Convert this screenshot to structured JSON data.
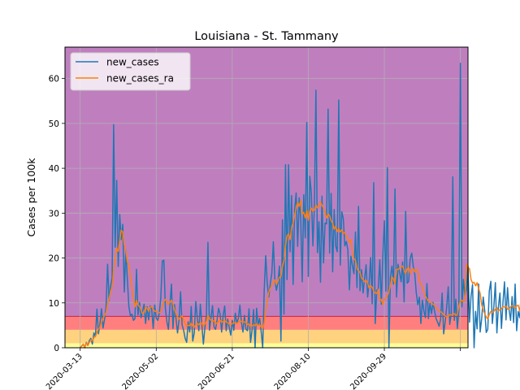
{
  "chart_data": {
    "type": "line",
    "title": "Louisiana - St. Tammany",
    "xlabel": "",
    "ylabel": "Cases per 100k",
    "x_ticks": [
      "2020-03-13",
      "2020-05-02",
      "2020-06-21",
      "2020-08-10",
      "2020-09-29",
      ""
    ],
    "y_ticks": [
      "0",
      "10",
      "20",
      "30",
      "40",
      "50",
      "60"
    ],
    "xlim": [
      "2020-03-03",
      "2020-11-23"
    ],
    "ylim": [
      0,
      67
    ],
    "grid": true,
    "legend_position": "top-left",
    "risk_bands": [
      {
        "from": 0,
        "to": 1,
        "color": "#ffff99"
      },
      {
        "from": 1,
        "to": 4,
        "color": "#ffd27f"
      },
      {
        "from": 4,
        "to": 7,
        "color": "#ff7f7f"
      },
      {
        "from": 7,
        "to": 67,
        "color": "#bf7fbf"
      }
    ],
    "series": [
      {
        "name": "new_cases",
        "color": "#1f77b4",
        "start_date": "2020-03-13",
        "values": [
          0,
          0.4,
          0.8,
          0,
          1.2,
          0.5,
          1.6,
          2.1,
          0.8,
          3.3,
          2.5,
          8.6,
          3.1,
          5.4,
          8.7,
          4.4,
          6.3,
          9.2,
          18.6,
          10.5,
          13.7,
          15.6,
          49.7,
          22.4,
          37.3,
          18.1,
          29.7,
          24.1,
          27.5,
          12.4,
          21.8,
          15.3,
          9.2,
          7.1,
          7.5,
          6.1,
          6.5,
          17.5,
          7.3,
          10.1,
          6.7,
          8.1,
          9.7,
          5.4,
          9.1,
          6.2,
          9.3,
          8.6,
          4.3,
          9.5,
          6.6,
          6.1,
          7.7,
          11.2,
          19.3,
          19.5,
          8.8,
          5.8,
          4.1,
          9.4,
          14.2,
          4.3,
          9.6,
          6.5,
          3.3,
          6.2,
          12.5,
          5.1,
          3.9,
          2.1,
          1.2,
          5.8,
          3.5,
          9.2,
          1.5,
          3.3,
          10.3,
          6.6,
          3.8,
          9.7,
          5.1,
          0.8,
          4.5,
          7.4,
          23.5,
          3.9,
          6.6,
          9.4,
          4.6,
          4.1,
          6.2,
          8.8,
          7.5,
          3.5,
          7.2,
          9.3,
          3.8,
          6.4,
          4.5,
          2.8,
          6.1,
          3.9,
          7.7,
          5.5,
          6.5,
          9.5,
          5.7,
          3.5,
          7.2,
          4.1,
          3.8,
          8.7,
          1.2,
          3.9,
          8.5,
          0,
          8.8,
          5.1,
          6.6,
          3.6,
          0,
          12.8,
          20.5,
          14.3,
          11.3,
          14.3,
          16.6,
          23.6,
          15.2,
          12.8,
          14.5,
          18.2,
          1.5,
          28.5,
          7.5,
          40.8,
          15.2,
          40.8,
          21.4,
          33.9,
          14.1,
          30.8,
          34.5,
          22.6,
          33.4,
          28.8,
          14.7,
          34.1,
          24.5,
          50.2,
          15.9,
          38.2,
          34.4,
          22.7,
          31.5,
          57.4,
          21.2,
          28.1,
          14.6,
          33.8,
          18.9,
          27.8,
          27.6,
          53.2,
          21.1,
          34.4,
          16.9,
          30.8,
          22.7,
          21.4,
          55.2,
          18.4,
          30.3,
          28.8,
          22.7,
          23.7,
          21.8,
          12.9,
          20.4,
          18.3,
          16.5,
          25.8,
          13.4,
          31.5,
          12.7,
          17.4,
          12.2,
          15.4,
          18.5,
          11.3,
          14.6,
          20.1,
          9.8,
          36.8,
          5.4,
          12.8,
          13.1,
          19.6,
          9.7,
          20.3,
          28.3,
          12.6,
          40.1,
          0,
          15.8,
          18.2,
          14.2,
          35.4,
          11.3,
          18.6,
          16.8,
          14.7,
          19.1,
          10.2,
          30.4,
          14.4,
          14.8,
          19.9,
          21.1,
          18.2,
          16.5,
          12.2,
          9.6,
          11.3,
          5.4,
          10.6,
          8.2,
          6.7,
          14.3,
          6.5,
          9.9,
          7.6,
          10.1,
          8.2,
          6.5,
          5.7,
          4.8,
          6.4,
          12.2,
          3.1,
          5.8,
          9.1,
          13.6,
          5.2,
          7.6,
          38.1,
          6.1,
          10.8,
          4.3,
          8.4,
          63.4,
          9.1,
          15.2,
          11.5,
          12.9,
          18.2,
          5.7,
          11.5,
          14.1,
          0,
          8.1,
          4.2,
          14.2,
          3.5,
          6.5,
          11.3,
          8.3,
          3.4,
          4.1,
          12.6,
          14.8,
          5.4,
          9.2,
          14.5,
          3.3,
          9.1,
          12.2,
          4.3,
          10.1,
          14.7,
          6.2,
          13.4,
          8.5,
          6.1,
          11.4,
          5.6,
          14.2,
          3.8,
          8.1,
          6.7,
          12.3,
          9.5,
          2.1,
          7.8,
          19.6,
          5.3,
          12.4,
          16.8,
          0,
          17.6
        ]
      },
      {
        "name": "new_cases_ra",
        "color": "#ff7f0e",
        "start_date": "2020-03-13",
        "values": [
          0,
          0.4,
          0.8,
          0,
          1.1,
          0.5,
          1.2,
          1.8,
          1.5,
          2.3,
          2.5,
          3.4,
          4.2,
          4.6,
          5.7,
          6.6,
          7.2,
          7.9,
          9.8,
          10.8,
          12.6,
          13.6,
          17.4,
          19.8,
          22.2,
          21.5,
          23.9,
          26.2,
          25.8,
          22.8,
          21.6,
          19.1,
          18.5,
          15.7,
          13.4,
          11.2,
          9.1,
          10.6,
          9.5,
          9.2,
          8.4,
          7.6,
          7.8,
          9.1,
          8.8,
          8.1,
          9.0,
          9.2,
          8.6,
          8.1,
          8.2,
          7.9,
          7.8,
          8.0,
          9.1,
          10.3,
          10.8,
          10.2,
          9.6,
          10.2,
          10.6,
          9.8,
          8.5,
          7.6,
          6.9,
          6.4,
          6.8,
          7.1,
          6.2,
          5.4,
          4.8,
          5.0,
          4.9,
          5.5,
          4.8,
          4.6,
          5.2,
          5.4,
          5.1,
          5.6,
          5.5,
          4.8,
          5.3,
          5.9,
          7.2,
          6.4,
          6.2,
          5.9,
          6.0,
          5.6,
          5.4,
          5.9,
          6.1,
          5.7,
          5.8,
          6.1,
          5.7,
          5.6,
          5.3,
          5.1,
          5.4,
          5.5,
          5.6,
          5.4,
          5.7,
          5.9,
          5.9,
          5.7,
          5.8,
          5.6,
          5.2,
          5.3,
          4.8,
          4.9,
          5.1,
          4.9,
          5.3,
          5.0,
          5.1,
          4.6,
          4.3,
          5.5,
          8.2,
          10.6,
          12.4,
          13.2,
          13.8,
          14.9,
          15.1,
          14.1,
          14.9,
          15.7,
          15.9,
          18.2,
          19.4,
          22.8,
          24.9,
          25.4,
          24.1,
          26.7,
          27.8,
          29.5,
          31.1,
          32.4,
          31.5,
          32.8,
          29.8,
          30.2,
          28.9,
          30.6,
          28.4,
          30.5,
          31.1,
          30.4,
          30.8,
          31.8,
          31.2,
          31.5,
          32.5,
          31.7,
          31.2,
          30.1,
          28.9,
          29.8,
          29.4,
          28.3,
          27.8,
          26.4,
          27.1,
          25.9,
          26.5,
          25.8,
          26.3,
          25.5,
          25.7,
          24.8,
          24.3,
          23.5,
          24.1,
          21.5,
          19.8,
          19.5,
          17.6,
          17.1,
          16.8,
          15.5,
          15.2,
          14.7,
          15.1,
          14.4,
          13.3,
          13.8,
          13.5,
          12.6,
          12.2,
          12.1,
          13.0,
          10.6,
          10.8,
          9.6,
          10.9,
          11.1,
          11.6,
          12.5,
          13.9,
          15.8,
          15.3,
          14.2,
          17.5,
          17.4,
          17.8,
          18.1,
          18.2,
          17.3,
          16.5,
          17.6,
          18.0,
          16.5,
          17.3,
          17.6,
          16.9,
          17.5,
          17.1,
          14.8,
          14.2,
          13.6,
          12.4,
          11.5,
          10.9,
          10.4,
          10.2,
          10.1,
          9.7,
          9.4,
          9.0,
          8.6,
          8.2,
          8.0,
          7.8,
          7.3,
          7.1,
          6.9,
          7.0,
          7.4,
          7.3,
          7.5,
          7.6,
          7.2,
          7.4,
          9.2,
          10.5,
          10.6,
          10.2,
          10.8,
          18.6,
          17.9,
          17.6,
          15.2,
          14.4,
          14.6,
          13.8,
          14.5,
          13.2,
          12.1,
          9.6,
          8.4,
          7.6,
          6.9,
          6.4,
          7.4,
          8.1,
          7.8,
          8.1,
          8.6,
          8.9,
          8.2,
          8.5,
          8.6,
          9.2,
          9.1,
          9.3,
          8.6,
          8.7,
          9.1,
          9.4,
          9.2,
          8.9,
          9.3,
          9.5,
          8.2,
          8.7,
          8.9,
          9.6,
          9.4,
          8.8,
          8.5,
          9.1,
          8.6,
          8.4,
          9.3,
          10.2,
          10.7,
          10.9,
          10.4,
          10.8
        ]
      }
    ]
  }
}
